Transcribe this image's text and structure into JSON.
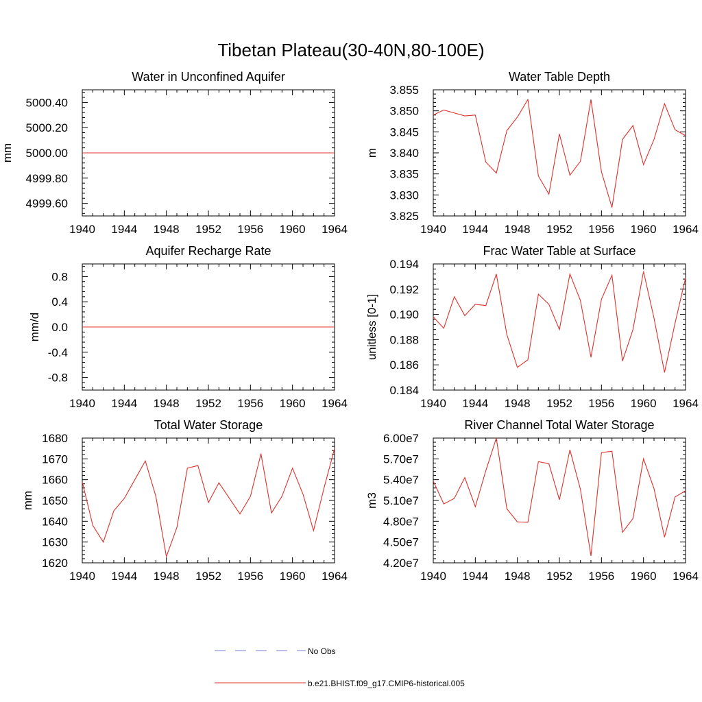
{
  "figure": {
    "title": "Tibetan Plateau(30-40N,80-100E)"
  },
  "legend": {
    "entries": [
      {
        "label": "No Obs",
        "color": "#7b7bd6",
        "style": "dashed"
      },
      {
        "label": "b.e21.BHIST.f09_g17.CMIP6-historical.005",
        "color": "#e0302a",
        "style": "solid"
      }
    ]
  },
  "chart_data": [
    {
      "type": "line",
      "title": "Water in Unconfined Aquifer",
      "xlabel": "",
      "ylabel": "mm",
      "xlim": [
        1940,
        1964
      ],
      "ylim": [
        4999.5,
        5000.5
      ],
      "xticks": [
        1940,
        1944,
        1948,
        1952,
        1956,
        1960,
        1964
      ],
      "yticks": [
        4999.6,
        4999.8,
        5000.0,
        5000.2,
        5000.4
      ],
      "ytick_labels": [
        "4999.60",
        "4999.80",
        "5000.00",
        "5000.20",
        "5000.40"
      ],
      "series": [
        {
          "color": "#e0302a",
          "x": [
            1940,
            1964
          ],
          "values": [
            5000.0,
            5000.0
          ]
        }
      ]
    },
    {
      "type": "line",
      "title": "Water Table Depth",
      "xlabel": "",
      "ylabel": "m",
      "xlim": [
        1940,
        1964
      ],
      "ylim": [
        3.825,
        3.855
      ],
      "xticks": [
        1940,
        1944,
        1948,
        1952,
        1956,
        1960,
        1964
      ],
      "yticks": [
        3.825,
        3.83,
        3.835,
        3.84,
        3.845,
        3.85,
        3.855
      ],
      "ytick_labels": [
        "3.825",
        "3.830",
        "3.835",
        "3.840",
        "3.845",
        "3.850",
        "3.855"
      ],
      "series": [
        {
          "color": "#e0302a",
          "x": [
            1940,
            1941,
            1942,
            1943,
            1944,
            1945,
            1946,
            1947,
            1948,
            1949,
            1950,
            1951,
            1952,
            1953,
            1954,
            1955,
            1956,
            1957,
            1958,
            1959,
            1960,
            1961,
            1962,
            1963,
            1964
          ],
          "values": [
            3.849,
            3.8502,
            3.8495,
            3.8488,
            3.849,
            3.8378,
            3.8352,
            3.8453,
            3.8485,
            3.8527,
            3.8345,
            3.8302,
            3.8445,
            3.8347,
            3.838,
            3.8527,
            3.8355,
            3.827,
            3.8432,
            3.8465,
            3.8372,
            3.8432,
            3.8517,
            3.8455,
            3.8441
          ]
        }
      ]
    },
    {
      "type": "line",
      "title": "Aquifer Recharge Rate",
      "xlabel": "",
      "ylabel": "mm/d",
      "xlim": [
        1940,
        1964
      ],
      "ylim": [
        -1.0,
        1.0
      ],
      "xticks": [
        1940,
        1944,
        1948,
        1952,
        1956,
        1960,
        1964
      ],
      "yticks": [
        -0.8,
        -0.4,
        0.0,
        0.4,
        0.8
      ],
      "ytick_labels": [
        "-0.8",
        "-0.4",
        "0.0",
        "0.4",
        "0.8"
      ],
      "series": [
        {
          "color": "#e0302a",
          "x": [
            1940,
            1964
          ],
          "values": [
            0.0,
            0.0
          ]
        }
      ]
    },
    {
      "type": "line",
      "title": "Frac Water Table at Surface",
      "xlabel": "",
      "ylabel": "unitless [0-1]",
      "xlim": [
        1940,
        1964
      ],
      "ylim": [
        0.184,
        0.194
      ],
      "xticks": [
        1940,
        1944,
        1948,
        1952,
        1956,
        1960,
        1964
      ],
      "yticks": [
        0.184,
        0.186,
        0.188,
        0.19,
        0.192,
        0.194
      ],
      "ytick_labels": [
        "0.184",
        "0.186",
        "0.188",
        "0.190",
        "0.192",
        "0.194"
      ],
      "series": [
        {
          "color": "#e0302a",
          "x": [
            1940,
            1941,
            1942,
            1943,
            1944,
            1945,
            1946,
            1947,
            1948,
            1949,
            1950,
            1951,
            1952,
            1953,
            1954,
            1955,
            1956,
            1957,
            1958,
            1959,
            1960,
            1961,
            1962,
            1963,
            1964
          ],
          "values": [
            0.1898,
            0.1889,
            0.1914,
            0.1899,
            0.1908,
            0.1907,
            0.1932,
            0.1884,
            0.1858,
            0.1864,
            0.1916,
            0.1908,
            0.1888,
            0.1932,
            0.1911,
            0.1866,
            0.1912,
            0.1931,
            0.1863,
            0.1888,
            0.1934,
            0.1897,
            0.1854,
            0.1893,
            0.1929
          ]
        }
      ]
    },
    {
      "type": "line",
      "title": "Total Water Storage",
      "xlabel": "",
      "ylabel": "mm",
      "xlim": [
        1940,
        1964
      ],
      "ylim": [
        1620,
        1680
      ],
      "xticks": [
        1940,
        1944,
        1948,
        1952,
        1956,
        1960,
        1964
      ],
      "yticks": [
        1620,
        1630,
        1640,
        1650,
        1660,
        1670,
        1680
      ],
      "ytick_labels": [
        "1620",
        "1630",
        "1640",
        "1650",
        "1660",
        "1670",
        "1680"
      ],
      "series": [
        {
          "color": "#e0302a",
          "x": [
            1940,
            1941,
            1942,
            1943,
            1944,
            1945,
            1946,
            1947,
            1948,
            1949,
            1950,
            1951,
            1952,
            1953,
            1954,
            1955,
            1956,
            1957,
            1958,
            1959,
            1960,
            1961,
            1962,
            1963,
            1964
          ],
          "values": [
            1659,
            1638,
            1630,
            1645,
            1651,
            1660,
            1669,
            1652,
            1623,
            1637,
            1665.5,
            1666.8,
            1649,
            1658.5,
            1651,
            1643.5,
            1652,
            1672.5,
            1644,
            1652,
            1665.5,
            1653,
            1635.5,
            1656,
            1675
          ]
        }
      ]
    },
    {
      "type": "line",
      "title": "River Channel Total Water Storage",
      "xlabel": "",
      "ylabel": "m3",
      "xlim": [
        1940,
        1964
      ],
      "ylim": [
        42000000,
        60000000
      ],
      "xticks": [
        1940,
        1944,
        1948,
        1952,
        1956,
        1960,
        1964
      ],
      "yticks": [
        42000000,
        45000000,
        48000000,
        51000000,
        54000000,
        57000000,
        60000000
      ],
      "ytick_labels": [
        "4.20e7",
        "4.50e7",
        "4.80e7",
        "5.10e7",
        "5.40e7",
        "5.70e7",
        "6.00e7"
      ],
      "series": [
        {
          "color": "#e0302a",
          "x": [
            1940,
            1941,
            1942,
            1943,
            1944,
            1945,
            1946,
            1947,
            1948,
            1949,
            1950,
            1951,
            1952,
            1953,
            1954,
            1955,
            1956,
            1957,
            1958,
            1959,
            1960,
            1961,
            1962,
            1963,
            1964
          ],
          "values": [
            53800000,
            50500000,
            51300000,
            54300000,
            50100000,
            55300000,
            60000000,
            49800000,
            47900000,
            47850000,
            56600000,
            56300000,
            51100000,
            58300000,
            52600000,
            43000000,
            57900000,
            58100000,
            46400000,
            48400000,
            57000000,
            52700000,
            45700000,
            51500000,
            52400000
          ]
        }
      ]
    }
  ]
}
